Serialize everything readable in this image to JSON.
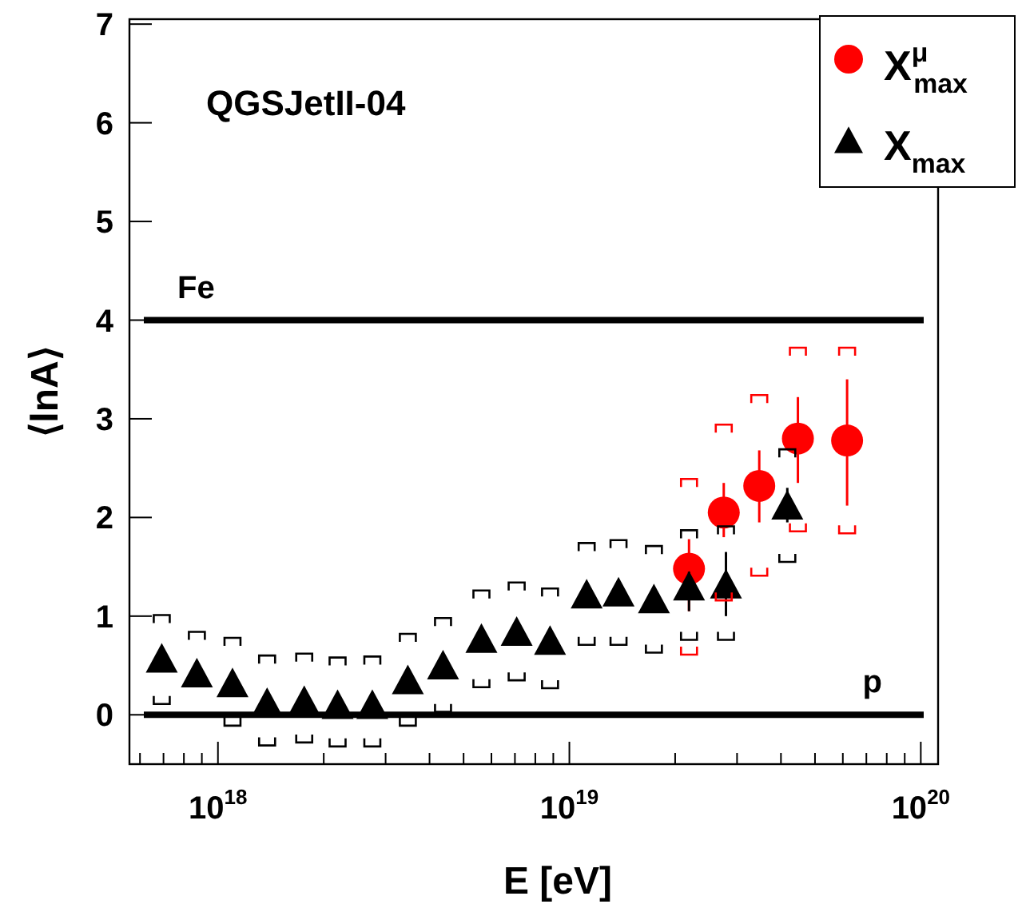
{
  "chart_data": {
    "type": "scatter",
    "xlabel": "E [eV]",
    "ylabel": "⟨lnA⟩",
    "log": "x",
    "legend": "top right",
    "grid": false,
    "xlim": [
      5.6e+17,
      1.12e+20
    ],
    "ylim": [
      -0.5,
      7.05
    ],
    "xticks": [
      {
        "value": 6e+17,
        "label": null
      },
      {
        "value": 7e+17,
        "label": null
      },
      {
        "value": 8e+17,
        "label": null
      },
      {
        "value": 9e+17,
        "label": null
      },
      {
        "value": 1e+18,
        "label": "10$^{18}$"
      },
      {
        "value": 2e+18,
        "label": null
      },
      {
        "value": 3e+18,
        "label": null
      },
      {
        "value": 4e+18,
        "label": null
      },
      {
        "value": 5e+18,
        "label": null
      },
      {
        "value": 6e+18,
        "label": null
      },
      {
        "value": 7e+18,
        "label": null
      },
      {
        "value": 8e+18,
        "label": null
      },
      {
        "value": 9e+18,
        "label": null
      },
      {
        "value": 1e+19,
        "label": "10$^{19}$"
      },
      {
        "value": 2e+19,
        "label": null
      },
      {
        "value": 3e+19,
        "label": null
      },
      {
        "value": 4e+19,
        "label": null
      },
      {
        "value": 5e+19,
        "label": null
      },
      {
        "value": 6e+19,
        "label": null
      },
      {
        "value": 7e+19,
        "label": null
      },
      {
        "value": 8e+19,
        "label": null
      },
      {
        "value": 9e+19,
        "label": null
      },
      {
        "value": 1e+20,
        "label": "10$^{20}$"
      }
    ],
    "yticks": [
      0,
      1,
      2,
      3,
      4,
      5,
      6,
      7
    ],
    "annotations": [
      "QGSJetII-04"
    ],
    "ref_lines": [
      {
        "axis": "y",
        "value": 4,
        "label": "Fe",
        "color": "#000000"
      },
      {
        "axis": "y",
        "value": 0,
        "label": "p",
        "color": "#000000"
      }
    ],
    "series": [
      {
        "name": "X$^{μ}$$_{max}$",
        "color": "#ff0000",
        "marker": "circle",
        "x": [
          2.19e+19,
          2.75e+19,
          3.47e+19,
          4.47e+19,
          6.17e+19
        ],
        "values": [
          1.48,
          2.05,
          2.32,
          2.8,
          2.78
        ],
        "errors": [
          [
            1.05,
            1.78
          ],
          [
            1.8,
            2.35
          ],
          [
            1.95,
            2.68
          ],
          [
            2.35,
            3.22
          ],
          [
            2.12,
            3.4
          ]
        ]
      },
      {
        "name": "X$_{max}$",
        "color": "#000000",
        "marker": "triangle",
        "x": [
          6.92e+17,
          8.71e+17,
          1.1e+18,
          1.38e+18,
          1.76e+18,
          2.19e+18,
          2.75e+18,
          3.47e+18,
          4.37e+18,
          5.62e+18,
          7.08e+18,
          8.81e+18,
          1.12e+19,
          1.38e+19,
          1.74e+19,
          2.19e+19,
          2.79e+19,
          4.17e+19
        ],
        "values": [
          0.55,
          0.4,
          0.3,
          0.1,
          0.12,
          0.08,
          0.08,
          0.33,
          0.48,
          0.75,
          0.82,
          0.73,
          1.2,
          1.22,
          1.15,
          1.28,
          1.3,
          2.1
        ],
        "errors": [
          null,
          null,
          null,
          null,
          null,
          null,
          null,
          null,
          null,
          null,
          null,
          null,
          null,
          null,
          null,
          [
            1.05,
            1.45
          ],
          [
            1.0,
            1.65
          ],
          [
            1.95,
            2.3
          ]
        ]
      },
      {
        "color": "#ff0000",
        "x": [
          2.19e+19,
          2.75e+19,
          3.47e+19,
          4.47e+19,
          6.17e+19
        ],
        "values": [
          2.35,
          2.9,
          3.2,
          3.68,
          3.68
        ]
      },
      {
        "color": "#ff0000",
        "x": [
          2.19e+19,
          2.75e+19,
          3.47e+19,
          4.47e+19,
          6.17e+19
        ],
        "values": [
          0.65,
          1.2,
          1.45,
          1.9,
          1.88
        ]
      },
      {
        "color": "#000000",
        "x": [
          6.92e+17,
          8.71e+17,
          1.1e+18,
          1.38e+18,
          1.76e+18,
          2.19e+18,
          2.75e+18,
          3.47e+18,
          4.37e+18,
          5.62e+18,
          7.08e+18,
          8.81e+18,
          1.12e+19,
          1.38e+19,
          1.74e+19,
          2.19e+19,
          2.79e+19,
          4.17e+19
        ],
        "values": [
          0.97,
          0.8,
          0.74,
          0.56,
          0.58,
          0.54,
          0.55,
          0.78,
          0.94,
          1.22,
          1.3,
          1.24,
          1.7,
          1.73,
          1.67,
          1.83,
          1.87,
          2.65
        ]
      },
      {
        "color": "#000000",
        "x": [
          6.92e+17,
          8.71e+17,
          1.1e+18,
          1.38e+18,
          1.76e+18,
          2.19e+18,
          2.75e+18,
          3.47e+18,
          4.37e+18,
          5.62e+18,
          7.08e+18,
          8.81e+18,
          1.12e+19,
          1.38e+19,
          1.74e+19,
          2.19e+19,
          2.79e+19,
          4.17e+19
        ],
        "values": [
          0.15,
          null,
          -0.07,
          -0.27,
          -0.24,
          -0.28,
          -0.28,
          -0.07,
          0.07,
          0.32,
          0.39,
          0.31,
          0.75,
          0.75,
          0.67,
          0.8,
          0.8,
          1.59
        ]
      }
    ]
  }
}
